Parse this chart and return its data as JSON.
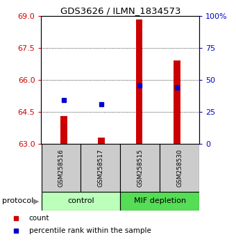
{
  "title": "GDS3626 / ILMN_1834573",
  "samples": [
    "GSM258516",
    "GSM258517",
    "GSM258515",
    "GSM258530"
  ],
  "bar_bottoms": [
    63,
    63,
    63,
    63
  ],
  "bar_tops": [
    64.3,
    63.3,
    68.85,
    66.9
  ],
  "percentile_values": [
    65.05,
    64.85,
    65.75,
    65.65
  ],
  "ylim": [
    63,
    69
  ],
  "y_ticks": [
    63,
    64.5,
    66,
    67.5,
    69
  ],
  "right_y_ticks": [
    0,
    25,
    50,
    75,
    100
  ],
  "right_y_labels": [
    "0",
    "25",
    "50",
    "75",
    "100%"
  ],
  "bar_color": "#cc0000",
  "percentile_color": "#0000cc",
  "left_tick_color": "#cc0000",
  "right_tick_color": "#0000cc",
  "protocol_label": "protocol",
  "control_bg": "#bbffbb",
  "mif_bg": "#55dd55",
  "sample_box_bg": "#cccccc",
  "legend_count_label": "count",
  "legend_pct_label": "percentile rank within the sample",
  "bar_width": 0.18
}
